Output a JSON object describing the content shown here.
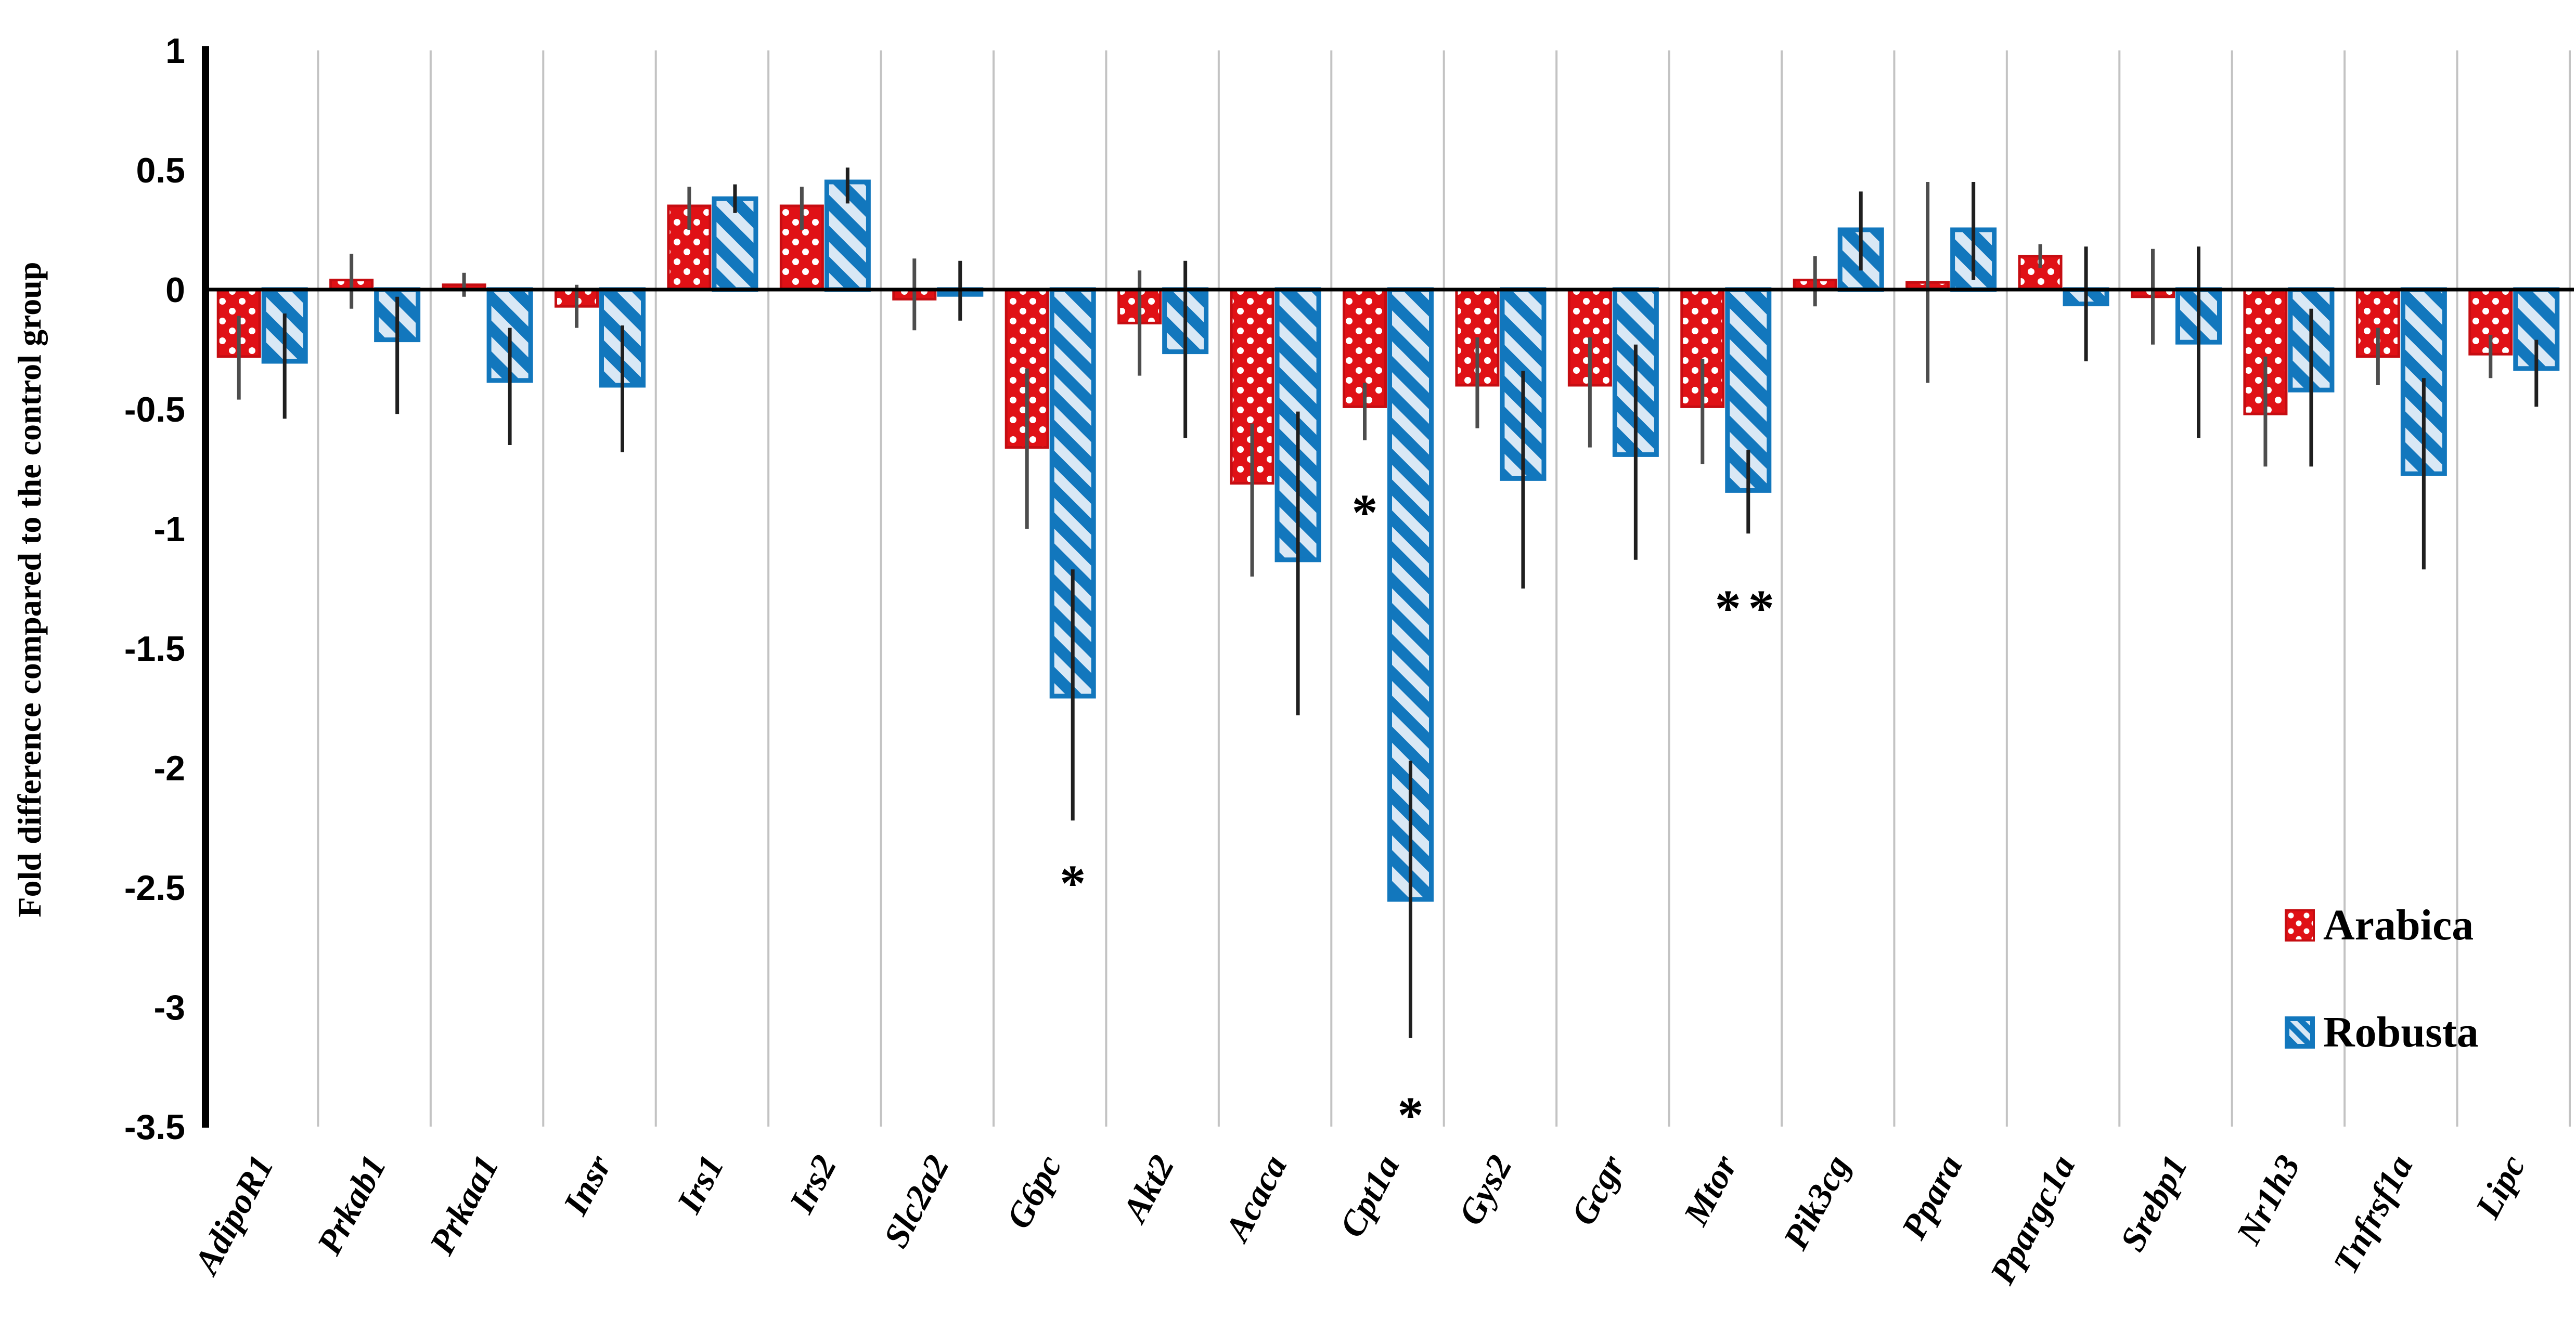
{
  "chart_data": {
    "type": "bar",
    "title": "",
    "ylabel": "Fold difference compared to the control group",
    "xlabel": "",
    "categories": [
      "AdipoR1",
      "Prkab1",
      "Prkaa1",
      "Insr",
      "Irs1",
      "Irs2",
      "Slc2a2",
      "G6pc",
      "Akt2",
      "Acaca",
      "Cpt1a",
      "Gys2",
      "Gcgr",
      "Mtor",
      "Pik3cg",
      "Ppara",
      "Ppargc1a",
      "Srebp1",
      "Nr1h3",
      "Tnfrsf1a",
      "Lipc"
    ],
    "series": [
      {
        "name": "Arabica",
        "pattern": "red-with-white-dots",
        "fill": "#e01116",
        "border": "#c60d12",
        "dot_color": "#ffffff",
        "errorbar_color": "#4d4d4d",
        "values": [
          -0.28,
          0.04,
          0.02,
          -0.07,
          0.35,
          0.35,
          -0.04,
          -0.66,
          -0.14,
          -0.81,
          -0.49,
          -0.4,
          -0.4,
          -0.49,
          0.04,
          0.03,
          0.14,
          -0.03,
          -0.52,
          -0.28,
          -0.27
        ],
        "err_up": [
          0.17,
          0.11,
          0.05,
          0.09,
          0.08,
          0.08,
          0.17,
          0.33,
          0.22,
          0.25,
          0.1,
          0.2,
          0.2,
          0.2,
          0.1,
          0.42,
          0.05,
          0.2,
          0.24,
          0.12,
          0.08
        ],
        "err_down": [
          0.18,
          0.12,
          0.05,
          0.09,
          0.1,
          0.1,
          0.13,
          0.34,
          0.22,
          0.39,
          0.14,
          0.18,
          0.26,
          0.24,
          0.11,
          0.42,
          0.05,
          0.2,
          0.22,
          0.12,
          0.1
        ]
      },
      {
        "name": "Robusta",
        "pattern": "blue-diagonal-stripes",
        "fill": "#1277bd",
        "border": "#1277bd",
        "stripe_bg": "#d9e8f5",
        "errorbar_color": "#1f1f1f",
        "values": [
          -0.3,
          -0.21,
          -0.38,
          -0.4,
          0.38,
          0.45,
          -0.02,
          -1.7,
          -0.26,
          -1.13,
          -2.55,
          -0.79,
          -0.69,
          -0.84,
          0.25,
          0.25,
          -0.06,
          -0.22,
          -0.42,
          -0.77,
          -0.33
        ],
        "err_up": [
          0.2,
          0.18,
          0.22,
          0.25,
          0.06,
          0.06,
          0.14,
          0.53,
          0.38,
          0.62,
          0.58,
          0.45,
          0.46,
          0.17,
          0.16,
          0.2,
          0.24,
          0.4,
          0.34,
          0.4,
          0.12
        ],
        "err_down": [
          0.24,
          0.31,
          0.27,
          0.28,
          0.06,
          0.09,
          0.11,
          0.52,
          0.36,
          0.65,
          0.58,
          0.46,
          0.44,
          0.18,
          0.17,
          0.21,
          0.24,
          0.4,
          0.32,
          0.4,
          0.16
        ]
      }
    ],
    "yticks": [
      "1",
      "0.5",
      "0",
      "-0.5",
      "-1",
      "-1.5",
      "-2",
      "-2.5",
      "-3",
      "-3.5"
    ],
    "ylim": [
      1,
      -3.5
    ],
    "grid": "vertical-category-separators",
    "gridline_color": "#c3c3c3",
    "axis_color": "#000000",
    "legend_position": "inside-right",
    "annotations": [
      {
        "category": "G6pc",
        "series": "Robusta",
        "text": "*",
        "y": -2.45
      },
      {
        "category": "Cpt1a",
        "series": "Arabica",
        "text": "*",
        "y": -0.9
      },
      {
        "category": "Cpt1a",
        "series": "Robusta",
        "text": "*",
        "y": -3.42
      },
      {
        "category": "Mtor",
        "series": "Robusta",
        "text": "**",
        "y": -1.3
      }
    ]
  }
}
